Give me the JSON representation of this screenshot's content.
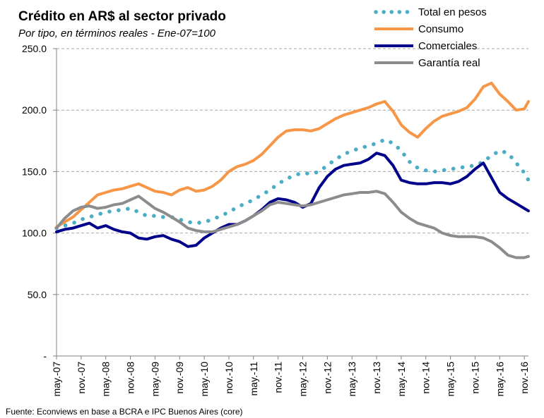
{
  "chart_data": {
    "type": "line",
    "title": "Crédito en AR$ al sector privado",
    "subtitle": "Por tipo, en términos reales - Ene-07=100",
    "source": "Fuente: Econviews en base a BCRA  e IPC Buenos Aires (core)",
    "ylabel": "",
    "xlabel": "",
    "ylim": [
      0,
      250
    ],
    "yticks": [
      {
        "value": 250,
        "label": "250.0"
      },
      {
        "value": 200,
        "label": "200.0"
      },
      {
        "value": 150,
        "label": "150.0"
      },
      {
        "value": 100,
        "label": "100.0"
      },
      {
        "value": 50,
        "label": "50.0"
      },
      {
        "value": 0,
        "label": "-"
      }
    ],
    "xlim": [
      2007.333,
      2016.917
    ],
    "xticks": [
      {
        "value": 2007.333,
        "label": "may.-07"
      },
      {
        "value": 2007.833,
        "label": "nov.-07"
      },
      {
        "value": 2008.333,
        "label": "may.-08"
      },
      {
        "value": 2008.833,
        "label": "nov.-08"
      },
      {
        "value": 2009.333,
        "label": "may.-09"
      },
      {
        "value": 2009.833,
        "label": "nov.-09"
      },
      {
        "value": 2010.333,
        "label": "may.-10"
      },
      {
        "value": 2010.833,
        "label": "nov.-10"
      },
      {
        "value": 2011.333,
        "label": "may.-11"
      },
      {
        "value": 2011.833,
        "label": "nov.-11"
      },
      {
        "value": 2012.333,
        "label": "may.-12"
      },
      {
        "value": 2012.833,
        "label": "nov.-12"
      },
      {
        "value": 2013.333,
        "label": "may.-13"
      },
      {
        "value": 2013.833,
        "label": "nov.-13"
      },
      {
        "value": 2014.333,
        "label": "may.-14"
      },
      {
        "value": 2014.833,
        "label": "nov.-14"
      },
      {
        "value": 2015.333,
        "label": "may.-15"
      },
      {
        "value": 2015.833,
        "label": "nov.-15"
      },
      {
        "value": 2016.333,
        "label": "may.-16"
      },
      {
        "value": 2016.833,
        "label": "nov.-16"
      }
    ],
    "grid": {
      "horizontal": true,
      "vertical": false,
      "style": "dashed"
    },
    "legend": {
      "placement": "top-right"
    },
    "series": [
      {
        "name": "Total en pesos",
        "color": "#4BACC6",
        "style": "dotted",
        "x": [
          2007.333,
          2007.5,
          2007.667,
          2007.833,
          2008.0,
          2008.167,
          2008.333,
          2008.5,
          2008.667,
          2008.833,
          2009.0,
          2009.167,
          2009.333,
          2009.5,
          2009.667,
          2009.833,
          2010.0,
          2010.167,
          2010.333,
          2010.5,
          2010.667,
          2010.833,
          2011.0,
          2011.167,
          2011.333,
          2011.5,
          2011.667,
          2011.833,
          2012.0,
          2012.167,
          2012.333,
          2012.5,
          2012.667,
          2012.833,
          2013.0,
          2013.167,
          2013.333,
          2013.5,
          2013.667,
          2013.833,
          2014.0,
          2014.167,
          2014.333,
          2014.5,
          2014.667,
          2014.833,
          2015.0,
          2015.167,
          2015.333,
          2015.5,
          2015.667,
          2015.833,
          2016.0,
          2016.167,
          2016.333,
          2016.5,
          2016.667,
          2016.833,
          2016.917
        ],
        "values": [
          104,
          106,
          108,
          111,
          113,
          115,
          117,
          118,
          119,
          120,
          117,
          114,
          114,
          113,
          113,
          111,
          109,
          108,
          109,
          111,
          114,
          117,
          121,
          124,
          127,
          131,
          135,
          140,
          144,
          147,
          149,
          148,
          150,
          155,
          160,
          164,
          167,
          169,
          171,
          173,
          176,
          173,
          167,
          158,
          153,
          151,
          150,
          151,
          152,
          153,
          154,
          155,
          158,
          163,
          167,
          165,
          157,
          149,
          143
        ]
      },
      {
        "name": "Consumo",
        "color": "#F79646",
        "style": "solid",
        "x": [
          2007.333,
          2007.5,
          2007.667,
          2007.833,
          2008.0,
          2008.167,
          2008.333,
          2008.5,
          2008.667,
          2008.833,
          2009.0,
          2009.167,
          2009.333,
          2009.5,
          2009.667,
          2009.833,
          2010.0,
          2010.167,
          2010.333,
          2010.5,
          2010.667,
          2010.833,
          2011.0,
          2011.167,
          2011.333,
          2011.5,
          2011.667,
          2011.833,
          2012.0,
          2012.167,
          2012.333,
          2012.5,
          2012.667,
          2012.833,
          2013.0,
          2013.167,
          2013.333,
          2013.5,
          2013.667,
          2013.833,
          2014.0,
          2014.167,
          2014.333,
          2014.5,
          2014.667,
          2014.833,
          2015.0,
          2015.167,
          2015.333,
          2015.5,
          2015.667,
          2015.833,
          2016.0,
          2016.167,
          2016.333,
          2016.5,
          2016.667,
          2016.833,
          2016.917
        ],
        "values": [
          105,
          109,
          113,
          119,
          125,
          131,
          133,
          135,
          136,
          138,
          140,
          137,
          134,
          133,
          131,
          135,
          137,
          134,
          135,
          138,
          143,
          150,
          154,
          156,
          159,
          164,
          171,
          178,
          183,
          184,
          184,
          183,
          185,
          189,
          193,
          196,
          198,
          200,
          202,
          205,
          207,
          199,
          188,
          182,
          178,
          185,
          191,
          195,
          197,
          199,
          202,
          209,
          219,
          222,
          213,
          207,
          200,
          201,
          207
        ]
      },
      {
        "name": "Comerciales",
        "color": "#00008B",
        "style": "solid",
        "x": [
          2007.333,
          2007.5,
          2007.667,
          2007.833,
          2008.0,
          2008.167,
          2008.333,
          2008.5,
          2008.667,
          2008.833,
          2009.0,
          2009.167,
          2009.333,
          2009.5,
          2009.667,
          2009.833,
          2010.0,
          2010.167,
          2010.333,
          2010.5,
          2010.667,
          2010.833,
          2011.0,
          2011.167,
          2011.333,
          2011.5,
          2011.667,
          2011.833,
          2012.0,
          2012.167,
          2012.333,
          2012.5,
          2012.667,
          2012.833,
          2013.0,
          2013.167,
          2013.333,
          2013.5,
          2013.667,
          2013.833,
          2014.0,
          2014.167,
          2014.333,
          2014.5,
          2014.667,
          2014.833,
          2015.0,
          2015.167,
          2015.333,
          2015.5,
          2015.667,
          2015.833,
          2016.0,
          2016.167,
          2016.333,
          2016.5,
          2016.667,
          2016.833,
          2016.917
        ],
        "values": [
          101,
          103,
          104,
          106,
          108,
          104,
          106,
          103,
          101,
          100,
          96,
          95,
          97,
          98,
          95,
          93,
          89,
          90,
          96,
          100,
          104,
          107,
          107,
          110,
          114,
          119,
          125,
          128,
          127,
          125,
          121,
          124,
          137,
          146,
          152,
          155,
          156,
          157,
          160,
          165,
          163,
          155,
          143,
          141,
          140,
          140,
          141,
          141,
          140,
          142,
          146,
          152,
          157,
          145,
          133,
          128,
          124,
          120,
          118
        ]
      },
      {
        "name": "Garantía real",
        "color": "#8C8C8C",
        "style": "solid",
        "x": [
          2007.333,
          2007.5,
          2007.667,
          2007.833,
          2008.0,
          2008.167,
          2008.333,
          2008.5,
          2008.667,
          2008.833,
          2009.0,
          2009.167,
          2009.333,
          2009.5,
          2009.667,
          2009.833,
          2010.0,
          2010.167,
          2010.333,
          2010.5,
          2010.667,
          2010.833,
          2011.0,
          2011.167,
          2011.333,
          2011.5,
          2011.667,
          2011.833,
          2012.0,
          2012.167,
          2012.333,
          2012.5,
          2012.667,
          2012.833,
          2013.0,
          2013.167,
          2013.333,
          2013.5,
          2013.667,
          2013.833,
          2014.0,
          2014.167,
          2014.333,
          2014.5,
          2014.667,
          2014.833,
          2015.0,
          2015.167,
          2015.333,
          2015.5,
          2015.667,
          2015.833,
          2016.0,
          2016.167,
          2016.333,
          2016.5,
          2016.667,
          2016.833,
          2016.917
        ],
        "values": [
          104,
          112,
          118,
          121,
          122,
          120,
          121,
          123,
          124,
          127,
          130,
          125,
          120,
          117,
          113,
          109,
          104,
          102,
          101,
          101,
          103,
          105,
          107,
          110,
          114,
          118,
          123,
          125,
          124,
          123,
          122,
          123,
          125,
          127,
          129,
          131,
          132,
          133,
          133,
          134,
          132,
          125,
          117,
          112,
          108,
          106,
          104,
          100,
          98,
          97,
          97,
          97,
          96,
          93,
          88,
          82,
          80,
          80,
          81
        ]
      }
    ]
  }
}
